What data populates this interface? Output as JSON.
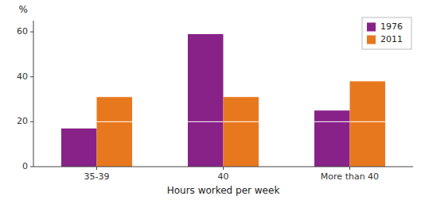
{
  "chart_data": {
    "type": "bar",
    "xlabel": "Hours worked per week",
    "ylabel": "%",
    "categories": [
      "35-39",
      "40",
      "More than 40"
    ],
    "series": [
      {
        "name": "1976",
        "color": "#882288",
        "values": [
          17,
          59,
          25
        ]
      },
      {
        "name": "2011",
        "color": "#e8781e",
        "values": [
          31,
          31,
          38
        ]
      }
    ],
    "hline_y": 20,
    "ylim": [
      0,
      65
    ],
    "yticks": [
      0,
      20,
      40,
      60
    ],
    "grid": false,
    "legend": "upper right"
  }
}
